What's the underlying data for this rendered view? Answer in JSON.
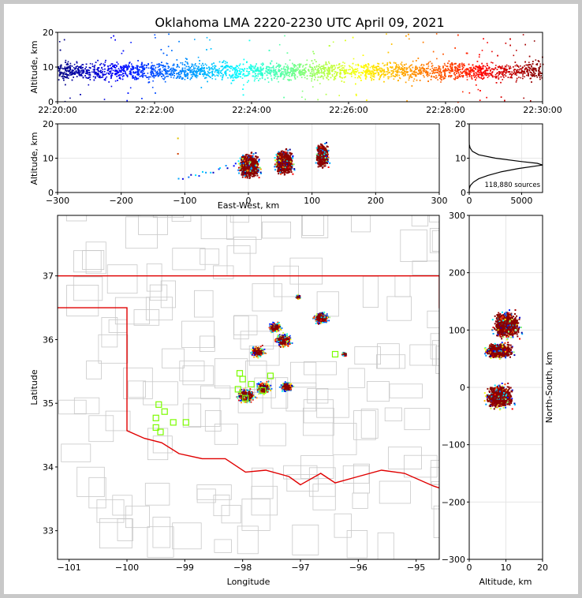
{
  "title": "Oklahoma LMA 2220-2230 UTC April 09, 2021",
  "colors": {
    "state_border": "#e00000",
    "county": "#c8c8c8",
    "station": "#7cfc00",
    "panel_border": "#000000"
  },
  "chart_data": [
    {
      "type": "scatter",
      "name": "time-altitude",
      "ylabel": "Altitude, km",
      "ylim": [
        0,
        20
      ],
      "yticks": [
        "0",
        "10",
        "20"
      ],
      "xlim": [
        "22:20:00",
        "22:30:00"
      ],
      "xticks": [
        "22:20:00",
        "22:22:00",
        "22:24:00",
        "22:26:00",
        "22:28:00",
        "22:30:00"
      ],
      "color_by": "time (jet colormap, blue early to dark red late)",
      "density_band_km": [
        4,
        14
      ],
      "core_km": 8
    },
    {
      "type": "scatter",
      "name": "east-west-altitude",
      "xlabel": "East-West, km",
      "ylabel": "Altitude, km",
      "xlim": [
        -300,
        300
      ],
      "ylim": [
        0,
        20
      ],
      "xticks": [
        "−300",
        "−200",
        "−100",
        "0",
        "100",
        "200",
        "300"
      ],
      "yticks": [
        "0",
        "10",
        "20"
      ],
      "clusters": [
        {
          "x": 0,
          "width": 40,
          "alt": 8
        },
        {
          "x": 55,
          "width": 35,
          "alt": 9
        },
        {
          "x": 115,
          "width": 25,
          "alt": 11
        }
      ]
    },
    {
      "type": "line",
      "name": "altitude-histogram",
      "annotation": "118,880 sources",
      "xlim": [
        0,
        7000
      ],
      "ylim": [
        0,
        20
      ],
      "xticks": [
        "0",
        "5000"
      ],
      "yticks": [
        "0",
        "10",
        "20"
      ],
      "points": [
        [
          0,
          0
        ],
        [
          0,
          1
        ],
        [
          100,
          2
        ],
        [
          400,
          3
        ],
        [
          900,
          4
        ],
        [
          1800,
          5
        ],
        [
          3000,
          6
        ],
        [
          4700,
          7
        ],
        [
          7000,
          8
        ],
        [
          6500,
          8.5
        ],
        [
          5000,
          9
        ],
        [
          2500,
          10
        ],
        [
          900,
          11
        ],
        [
          300,
          12
        ],
        [
          80,
          13
        ],
        [
          10,
          14
        ],
        [
          0,
          15
        ],
        [
          0,
          20
        ]
      ]
    },
    {
      "type": "scatter",
      "name": "plan-view-map",
      "xlabel": "Longitude",
      "ylabel": "Latitude",
      "xlim": [
        -101.2,
        -94.6
      ],
      "ylim": [
        32.55,
        37.95
      ],
      "xticks": [
        "−101",
        "−100",
        "−99",
        "−98",
        "−97",
        "−96",
        "−95"
      ],
      "yticks": [
        "33",
        "34",
        "35",
        "36",
        "37"
      ],
      "clusters": [
        {
          "lon": -97.95,
          "lat": 35.13,
          "radius": 0.22
        },
        {
          "lon": -97.65,
          "lat": 35.25,
          "radius": 0.18
        },
        {
          "lon": -97.25,
          "lat": 35.27,
          "radius": 0.15
        },
        {
          "lon": -97.3,
          "lat": 36.0,
          "radius": 0.2
        },
        {
          "lon": -97.75,
          "lat": 35.82,
          "radius": 0.17
        },
        {
          "lon": -97.45,
          "lat": 36.2,
          "radius": 0.15
        },
        {
          "lon": -96.65,
          "lat": 36.35,
          "radius": 0.18
        },
        {
          "lon": -97.05,
          "lat": 36.68,
          "radius": 0.06
        },
        {
          "lon": -96.25,
          "lat": 35.78,
          "radius": 0.06
        }
      ],
      "stations": [
        [
          -99.45,
          34.98
        ],
        [
          -99.5,
          34.77
        ],
        [
          -99.35,
          34.87
        ],
        [
          -99.2,
          34.7
        ],
        [
          -99.42,
          34.55
        ],
        [
          -99.5,
          34.62
        ],
        [
          -98.98,
          34.7
        ],
        [
          -98.05,
          35.47
        ],
        [
          -98.0,
          35.38
        ],
        [
          -98.08,
          35.22
        ],
        [
          -97.95,
          35.08
        ],
        [
          -97.65,
          35.2
        ],
        [
          -97.85,
          35.3
        ],
        [
          -97.52,
          35.43
        ],
        [
          -96.4,
          35.77
        ]
      ]
    },
    {
      "type": "scatter",
      "name": "altitude-north-south",
      "xlabel": "Altitude, km",
      "ylabel": "North-South, km",
      "xlim": [
        0,
        20
      ],
      "ylim": [
        -300,
        300
      ],
      "xticks": [
        "0",
        "10",
        "20"
      ],
      "yticks": [
        "300",
        "200",
        "100",
        "0",
        "−100",
        "−200",
        "−300"
      ],
      "clusters": [
        {
          "y": -15,
          "height": 40,
          "alt": 8
        },
        {
          "y": 65,
          "height": 25,
          "alt": 8
        },
        {
          "y": 110,
          "height": 45,
          "alt": 10
        }
      ]
    }
  ]
}
